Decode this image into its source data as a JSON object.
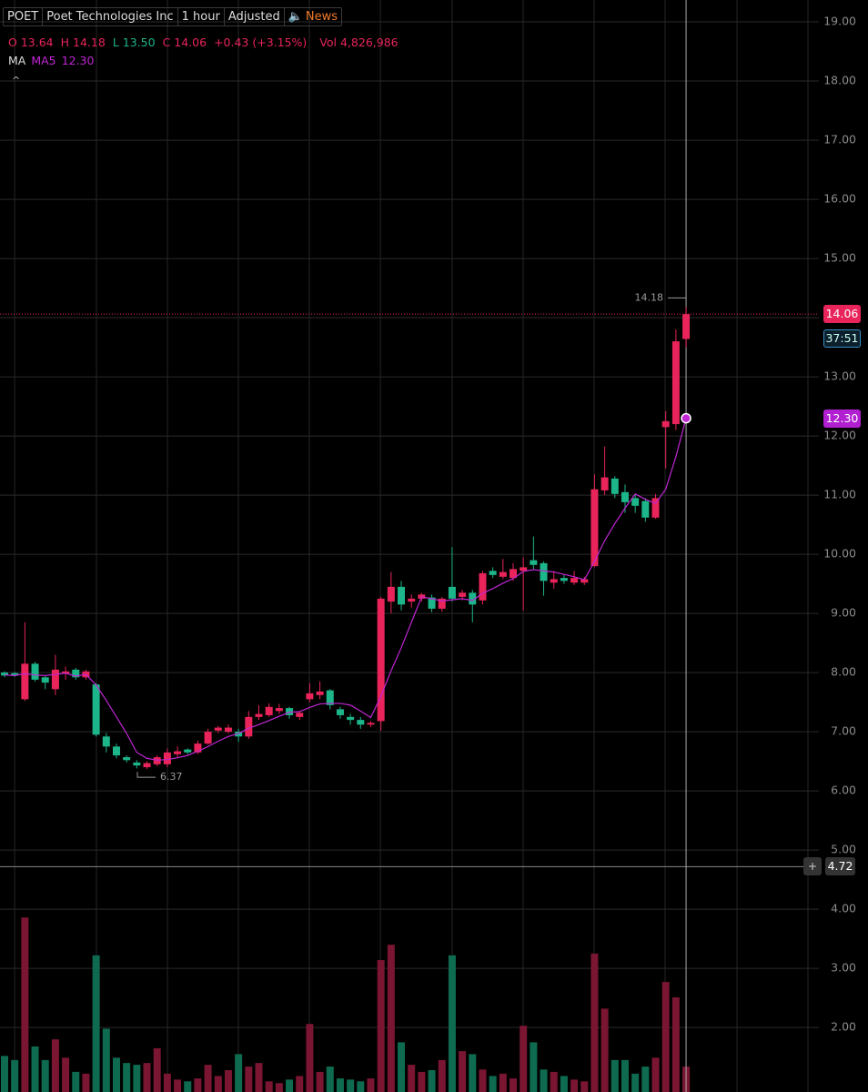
{
  "chart_data": {
    "type": "candlestick",
    "toolbar": [
      "POET",
      "Poet Technologies Inc",
      "1 hour",
      "Adjusted",
      "News"
    ],
    "info": {
      "o_label": "O",
      "o": "13.64",
      "h_label": "H",
      "h": "14.18",
      "l_label": "L",
      "l": "13.50",
      "c_label": "C",
      "c": "14.06",
      "change": "+0.43 (+3.15%)",
      "vol_label": "Vol",
      "vol": "4,826,986"
    },
    "indicator_label": "MA",
    "countdown": "37:51",
    "crosshair_price": 4.72,
    "up_color": "#e8245a",
    "down_color": "#1db58a",
    "up_volume_color": "#7a1532",
    "down_volume_color": "#0e6b50",
    "series": {
      "open": [
        8.0,
        7.99,
        7.55,
        8.15,
        7.92,
        7.72,
        7.98,
        8.05,
        7.92,
        7.8,
        6.92,
        6.75,
        6.57,
        6.48,
        6.4,
        6.45,
        6.45,
        6.62,
        6.7,
        6.65,
        6.8,
        7.02,
        7.0,
        7.0,
        6.92,
        7.25,
        7.28,
        7.35,
        7.4,
        7.25,
        7.55,
        7.62,
        7.7,
        7.38,
        7.25,
        7.2,
        7.12,
        7.18,
        9.2,
        9.45,
        9.2,
        9.25,
        9.27,
        9.08,
        9.45,
        9.28,
        9.35,
        9.22,
        9.72,
        9.62,
        9.6,
        9.72,
        9.9,
        9.85,
        9.52,
        9.6,
        9.52,
        9.52,
        9.8,
        11.08,
        11.28,
        11.05,
        10.95,
        10.9,
        10.62,
        12.15,
        12.2,
        13.64
      ],
      "high": [
        8.02,
        8.01,
        8.85,
        8.18,
        7.95,
        8.3,
        8.1,
        8.08,
        8.05,
        7.82,
        6.98,
        6.8,
        6.6,
        6.52,
        6.5,
        6.6,
        6.72,
        6.75,
        6.72,
        6.85,
        7.05,
        7.1,
        7.12,
        7.05,
        7.35,
        7.45,
        7.48,
        7.47,
        7.42,
        7.35,
        7.82,
        7.85,
        7.72,
        7.42,
        7.3,
        7.25,
        7.18,
        9.28,
        9.7,
        9.55,
        9.32,
        9.35,
        9.32,
        9.28,
        10.12,
        9.4,
        9.4,
        9.72,
        9.78,
        9.92,
        9.85,
        9.95,
        10.3,
        9.88,
        9.72,
        9.65,
        9.72,
        9.62,
        11.35,
        11.82,
        11.32,
        11.18,
        11.02,
        10.95,
        11.02,
        12.42,
        13.8,
        14.18
      ],
      "low": [
        7.92,
        7.93,
        7.52,
        7.85,
        7.72,
        7.62,
        7.88,
        7.88,
        7.88,
        6.92,
        6.65,
        6.55,
        6.48,
        6.38,
        6.37,
        6.42,
        6.4,
        6.57,
        6.62,
        6.62,
        6.78,
        6.98,
        6.97,
        6.83,
        6.88,
        7.2,
        7.25,
        7.3,
        7.22,
        7.2,
        7.5,
        7.55,
        7.38,
        7.22,
        7.12,
        7.05,
        7.08,
        7.02,
        9.0,
        9.05,
        9.1,
        9.2,
        9.02,
        9.03,
        9.2,
        9.22,
        8.85,
        9.15,
        9.6,
        9.58,
        9.55,
        9.05,
        9.75,
        9.3,
        9.42,
        9.5,
        9.48,
        9.48,
        9.78,
        11.0,
        10.95,
        10.7,
        10.7,
        10.55,
        10.6,
        11.45,
        12.1,
        13.5
      ],
      "close": [
        7.95,
        7.95,
        8.15,
        7.88,
        7.83,
        8.05,
        8.02,
        7.92,
        8.02,
        6.95,
        6.75,
        6.6,
        6.52,
        6.43,
        6.47,
        6.57,
        6.65,
        6.67,
        6.65,
        6.8,
        7.0,
        7.07,
        7.07,
        6.92,
        7.25,
        7.3,
        7.42,
        7.4,
        7.28,
        7.32,
        7.65,
        7.68,
        7.45,
        7.28,
        7.2,
        7.12,
        7.15,
        9.25,
        9.45,
        9.15,
        9.25,
        9.32,
        9.08,
        9.25,
        9.25,
        9.35,
        9.15,
        9.68,
        9.65,
        9.7,
        9.75,
        9.78,
        9.82,
        9.55,
        9.58,
        9.55,
        9.6,
        9.58,
        11.1,
        11.3,
        11.02,
        10.88,
        10.82,
        10.62,
        10.95,
        12.25,
        13.6,
        14.06
      ],
      "volume": [
        1.52,
        1.45,
        3.86,
        1.68,
        1.45,
        1.8,
        1.49,
        1.25,
        1.22,
        3.22,
        1.98,
        1.49,
        1.4,
        1.37,
        1.4,
        1.65,
        1.22,
        1.12,
        1.09,
        1.14,
        1.37,
        1.18,
        1.28,
        1.55,
        1.34,
        1.4,
        1.09,
        1.06,
        1.12,
        1.18,
        2.06,
        1.25,
        1.34,
        1.14,
        1.12,
        1.09,
        1.14,
        3.14,
        3.4,
        1.75,
        1.37,
        1.25,
        1.28,
        1.45,
        3.22,
        1.6,
        1.55,
        1.29,
        1.18,
        1.22,
        1.14,
        2.03,
        1.75,
        1.29,
        1.25,
        1.18,
        1.12,
        1.09,
        3.25,
        2.32,
        1.45,
        1.45,
        1.22,
        1.34,
        1.49,
        2.77,
        2.51,
        1.34
      ]
    },
    "ma5": {
      "name": "MA5",
      "color": "#c026d3",
      "last_label": "12.30",
      "values": [
        7.96,
        7.95,
        7.98,
        7.96,
        7.95,
        7.97,
        7.99,
        7.94,
        7.97,
        7.79,
        7.53,
        7.25,
        6.97,
        6.65,
        6.55,
        6.52,
        6.53,
        6.56,
        6.6,
        6.67,
        6.75,
        6.84,
        6.92,
        6.97,
        7.06,
        7.12,
        7.19,
        7.26,
        7.33,
        7.34,
        7.41,
        7.47,
        7.48,
        7.48,
        7.45,
        7.35,
        7.24,
        7.6,
        8.03,
        8.42,
        8.85,
        9.28,
        9.25,
        9.21,
        9.23,
        9.25,
        9.22,
        9.34,
        9.42,
        9.51,
        9.59,
        9.71,
        9.74,
        9.72,
        9.7,
        9.66,
        9.62,
        9.57,
        9.88,
        10.23,
        10.52,
        10.78,
        11.02,
        10.93,
        10.86,
        11.1,
        11.65,
        12.3
      ]
    },
    "ylim": [
      0.91,
      19.37
    ],
    "yticks": [
      {
        "value": 2,
        "label": "2.00"
      },
      {
        "value": 3,
        "label": "3.00"
      },
      {
        "value": 4,
        "label": "4.00"
      },
      {
        "value": 5,
        "label": "5.00"
      },
      {
        "value": 6,
        "label": "6.00"
      },
      {
        "value": 7,
        "label": "7.00"
      },
      {
        "value": 8,
        "label": "8.00"
      },
      {
        "value": 9,
        "label": "9.00"
      },
      {
        "value": 10,
        "label": "10.00"
      },
      {
        "value": 11,
        "label": "11.00"
      },
      {
        "value": 12,
        "label": "12.00"
      },
      {
        "value": 13,
        "label": "13.00"
      },
      {
        "value": 14,
        "label": "14.00"
      },
      {
        "value": 15,
        "label": "15.00"
      },
      {
        "value": 16,
        "label": "16.00"
      },
      {
        "value": 17,
        "label": "17.00"
      },
      {
        "value": 18,
        "label": "18.00"
      },
      {
        "value": 19,
        "label": "19.00"
      }
    ],
    "grid": true
  }
}
